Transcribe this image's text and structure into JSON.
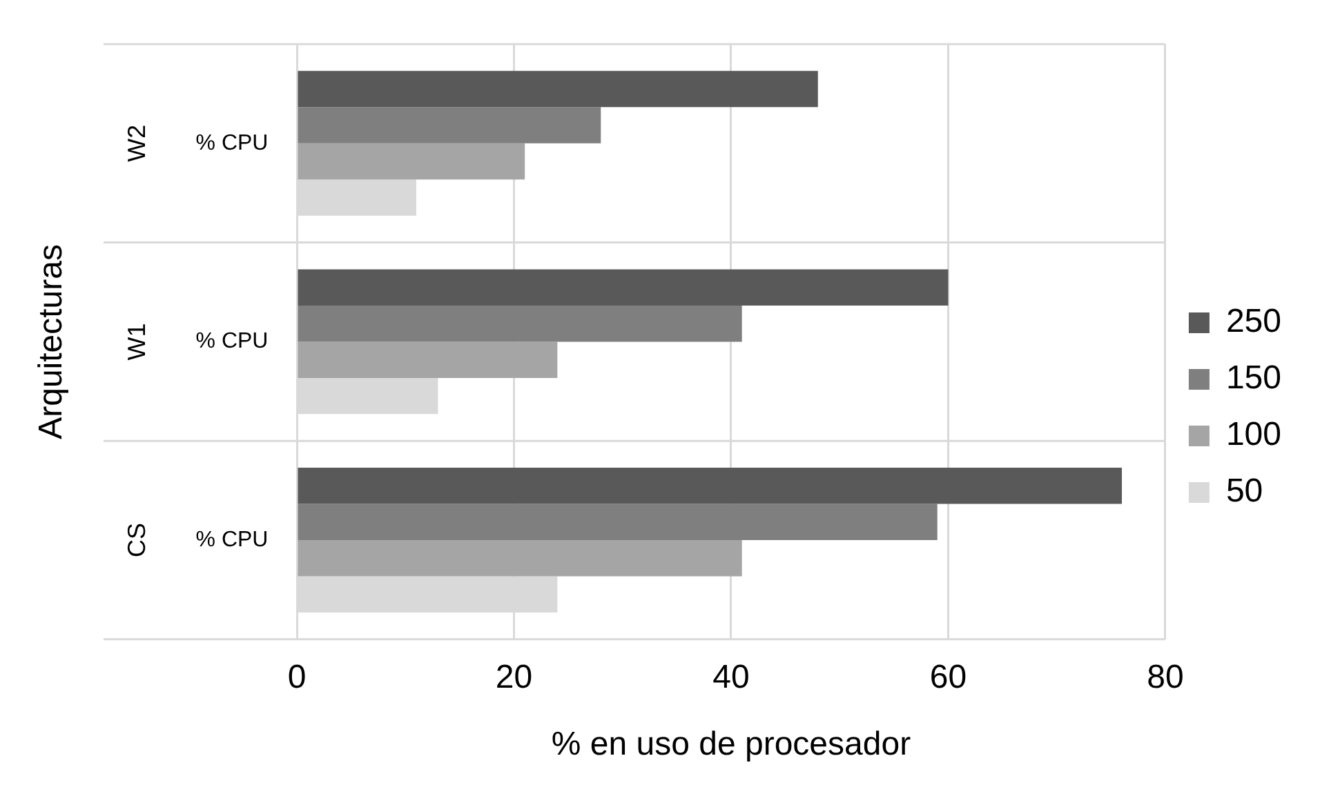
{
  "chart_data": {
    "type": "bar",
    "orientation": "horizontal",
    "xlabel": "% en uso de procesador",
    "ylabel": "Arquitecturas",
    "categories": [
      "W2",
      "W1",
      "CS"
    ],
    "series": [
      {
        "name": "250",
        "color": "#595959",
        "values": [
          48,
          60,
          76
        ]
      },
      {
        "name": "150",
        "color": "#7f7f7f",
        "values": [
          28,
          41,
          59
        ]
      },
      {
        "name": "100",
        "color": "#a5a5a5",
        "values": [
          21,
          24,
          41
        ]
      },
      {
        "name": "50",
        "color": "#d9d9d9",
        "values": [
          11,
          13,
          24
        ]
      }
    ],
    "annotations": [
      "% CPU",
      "% CPU",
      "% CPU"
    ],
    "xlim": [
      0,
      80
    ],
    "xticks": [
      0,
      20,
      40,
      60,
      80
    ],
    "grid": "x",
    "legend": "right"
  }
}
